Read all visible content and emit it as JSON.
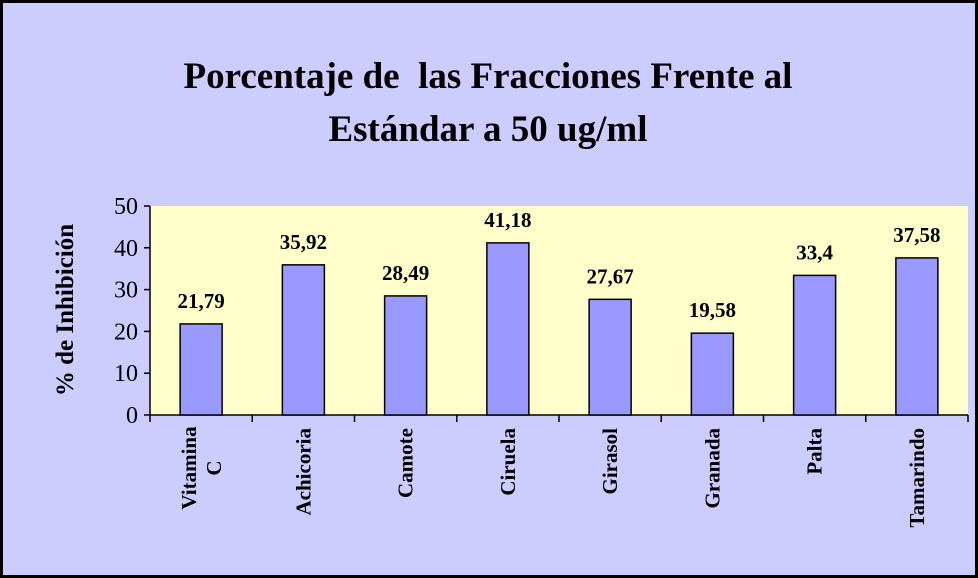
{
  "chart_data": {
    "type": "bar",
    "title": [
      "Porcentaje de  las Fracciones Frente al",
      "Estándar a 50 ug/ml"
    ],
    "ylabel": "% de Inhibición",
    "categories": [
      "Vitamina C",
      "Achicoria",
      "Camote",
      "Ciruela",
      "Girasol",
      "Granada",
      "Palta",
      "Tamarindo"
    ],
    "values": [
      21.79,
      35.92,
      28.49,
      41.18,
      27.67,
      19.58,
      33.4,
      37.58
    ],
    "value_labels": [
      "21,79",
      "35,92",
      "28,49",
      "41,18",
      "27,67",
      "19,58",
      "33,4",
      "37,58"
    ],
    "color": "#9999ff",
    "ylim": [
      0,
      50
    ],
    "yticks": [
      0,
      10,
      20,
      30,
      40,
      50
    ],
    "grid": false
  }
}
